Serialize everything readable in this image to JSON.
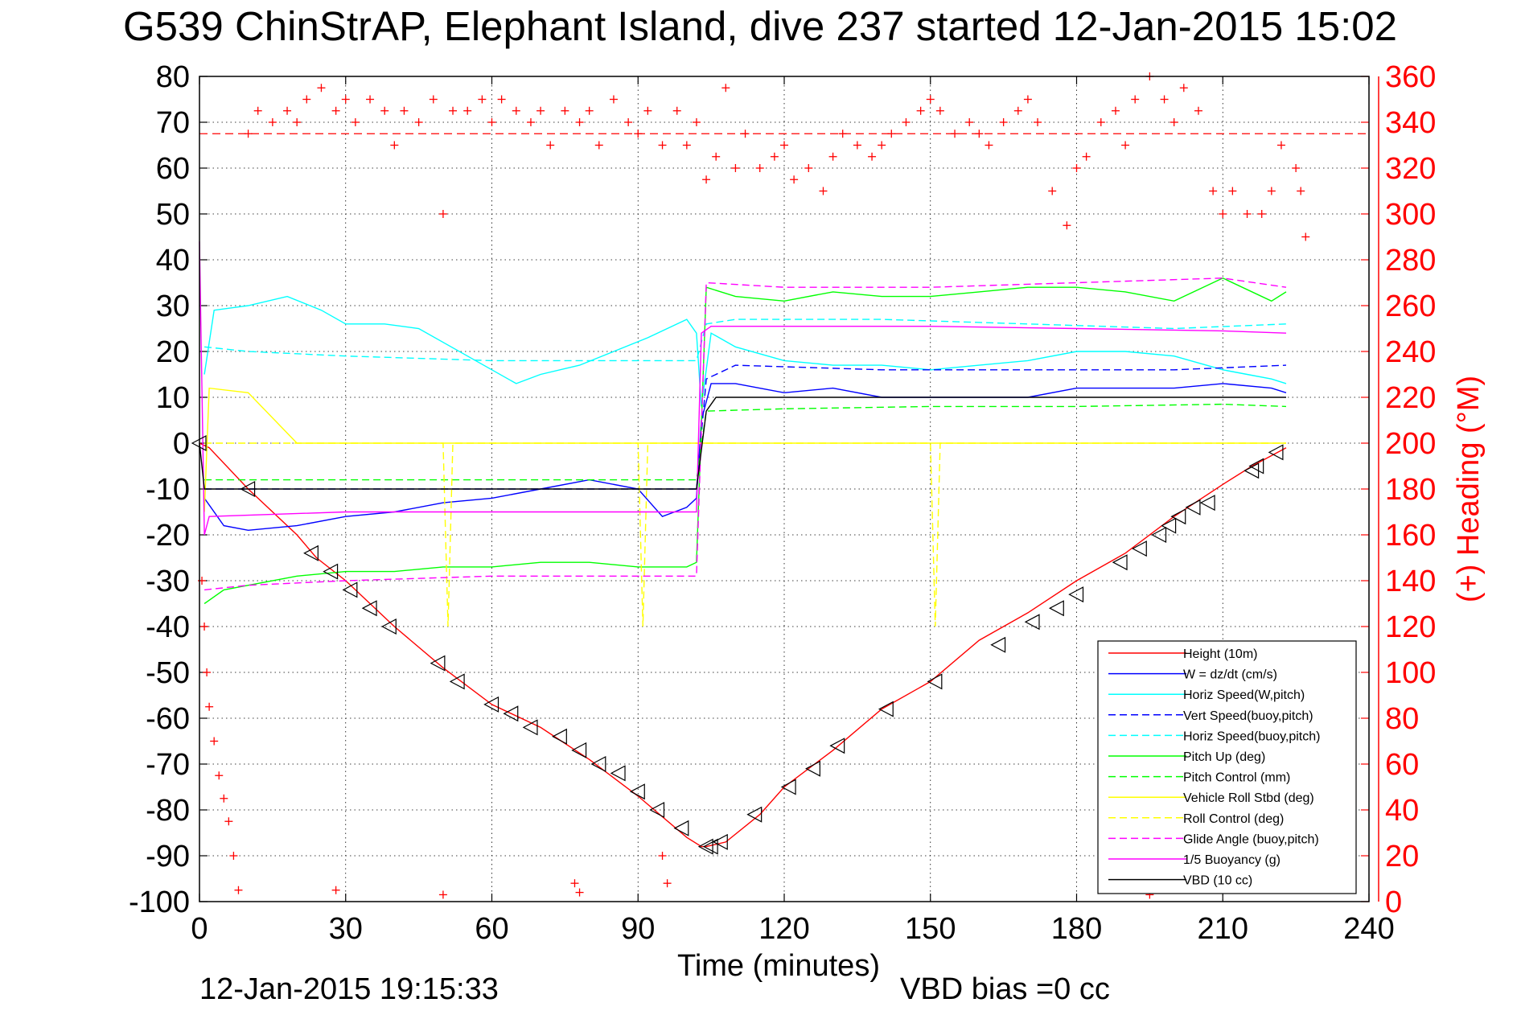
{
  "chart_data": {
    "type": "line",
    "title": "G539 ChinStrAP, Elephant Island, dive 237 started 12-Jan-2015 15:02",
    "xlabel": "Time (minutes)",
    "ylabel": "",
    "ylabel_right": "(+) Heading (°M)",
    "xlim": [
      0,
      240
    ],
    "ylim": [
      -100,
      80
    ],
    "ylim_right": [
      0,
      360
    ],
    "x_ticks": [
      "0",
      "30",
      "60",
      "90",
      "120",
      "150",
      "180",
      "210",
      "240"
    ],
    "y_ticks": [
      "80",
      "70",
      "60",
      "50",
      "40",
      "30",
      "20",
      "10",
      "0",
      "-10",
      "-20",
      "-30",
      "-40",
      "-50",
      "-60",
      "-70",
      "-80",
      "-90",
      "-100"
    ],
    "y_right_ticks": [
      "360",
      "340",
      "320",
      "300",
      "280",
      "260",
      "240",
      "220",
      "200",
      "180",
      "160",
      "140",
      "120",
      "100",
      "80",
      "60",
      "40",
      "20",
      "0"
    ],
    "grid": true,
    "legend_position": "bottom-right",
    "footer_left": "12-Jan-2015 19:15:33",
    "footer_right": "VBD bias =0 cc",
    "colors": {
      "red": "#ff0000",
      "blue": "#0000ff",
      "cyan": "#00ffff",
      "green": "#00ff00",
      "yellow": "#ffff00",
      "magenta": "#ff00ff",
      "black": "#000000"
    },
    "series": [
      {
        "name": "Height (10m)",
        "color": "#ff0000",
        "dash": "solid",
        "x": [
          0,
          2,
          10,
          20,
          24,
          30,
          40,
          50,
          60,
          70,
          80,
          90,
          100,
          103,
          104,
          108,
          115,
          120,
          130,
          140,
          150,
          160,
          170,
          180,
          190,
          200,
          210,
          216,
          223
        ],
        "y": [
          0,
          -1,
          -10,
          -20,
          -25,
          -30,
          -40,
          -49,
          -57,
          -62,
          -69,
          -77,
          -86,
          -88,
          -88,
          -87,
          -81,
          -75,
          -67,
          -58,
          -52,
          -43,
          -37,
          -30,
          -24,
          -16,
          -9,
          -5,
          -1
        ]
      },
      {
        "name": "W = dz/dt (cm/s)",
        "color": "#0000ff",
        "dash": "solid",
        "x": [
          1,
          5,
          10,
          20,
          30,
          40,
          50,
          60,
          70,
          80,
          90,
          95,
          100,
          102,
          103,
          105,
          110,
          120,
          130,
          140,
          150,
          160,
          170,
          180,
          190,
          200,
          210,
          220,
          223
        ],
        "y": [
          -12,
          -18,
          -19,
          -18,
          -16,
          -15,
          -13,
          -12,
          -10,
          -8,
          -10,
          -16,
          -14,
          -12,
          5,
          13,
          13,
          11,
          12,
          10,
          10,
          10,
          10,
          12,
          12,
          12,
          13,
          12,
          11
        ]
      },
      {
        "name": "Horiz Speed(W,pitch)",
        "color": "#00ffff",
        "dash": "solid",
        "x": [
          1,
          3,
          10,
          18,
          25,
          30,
          38,
          45,
          55,
          65,
          70,
          78,
          85,
          92,
          100,
          102,
          103,
          105,
          110,
          120,
          130,
          140,
          150,
          160,
          170,
          180,
          190,
          200,
          210,
          215,
          220,
          223
        ],
        "y": [
          15,
          29,
          30,
          32,
          29,
          26,
          26,
          25,
          19,
          13,
          15,
          17,
          20,
          23,
          27,
          24,
          8,
          24,
          21,
          18,
          17,
          17,
          16,
          17,
          18,
          20,
          20,
          19,
          16,
          15,
          14,
          13
        ]
      },
      {
        "name": "Vert Speed(buoy,pitch)",
        "color": "#0000ff",
        "dash": "dashed",
        "x": [
          1,
          10,
          30,
          60,
          90,
          102,
          104,
          110,
          140,
          170,
          200,
          223
        ],
        "y": [
          -10,
          -10,
          -10,
          -10,
          -10,
          -10,
          14,
          17,
          16,
          16,
          16,
          17
        ]
      },
      {
        "name": "Horiz Speed(buoy,pitch)",
        "color": "#00ffff",
        "dash": "dashed",
        "x": [
          1,
          10,
          30,
          60,
          90,
          102,
          104,
          110,
          140,
          170,
          200,
          223
        ],
        "y": [
          21,
          20,
          19,
          18,
          18,
          18,
          26,
          27,
          27,
          26,
          25,
          26
        ]
      },
      {
        "name": "Pitch Up (deg)",
        "color": "#00ff00",
        "dash": "solid",
        "x": [
          1,
          5,
          20,
          30,
          40,
          50,
          60,
          70,
          80,
          90,
          100,
          102,
          104,
          110,
          120,
          130,
          140,
          150,
          160,
          170,
          180,
          190,
          200,
          210,
          220,
          223
        ],
        "y": [
          -35,
          -32,
          -29,
          -28,
          -28,
          -27,
          -27,
          -26,
          -26,
          -27,
          -27,
          -26,
          34,
          32,
          31,
          33,
          32,
          32,
          33,
          34,
          34,
          33,
          31,
          36,
          31,
          33
        ]
      },
      {
        "name": "Pitch Control (mm)",
        "color": "#00ff00",
        "dash": "dashed",
        "x": [
          1,
          102,
          104,
          120,
          150,
          180,
          210,
          223
        ],
        "y": [
          -8,
          -8,
          7,
          7.5,
          8,
          8,
          8.5,
          8
        ]
      },
      {
        "name": "Vehicle Roll Stbd (deg)",
        "color": "#ffff00",
        "dash": "solid",
        "x": [
          1,
          2,
          10,
          20,
          30,
          40,
          50,
          60,
          70,
          80,
          90,
          100,
          103,
          105,
          110,
          120,
          130,
          140,
          150,
          160,
          170,
          180,
          190,
          200,
          210,
          220,
          223
        ],
        "y": [
          -15,
          12,
          11,
          0,
          0,
          0,
          0,
          0,
          0,
          0,
          0,
          0,
          0,
          0,
          0,
          0,
          0,
          0,
          0,
          0,
          0,
          0,
          0,
          0,
          0,
          0,
          0
        ]
      },
      {
        "name": "Roll Control (deg)",
        "color": "#ffff00",
        "dash": "dashed",
        "x": [
          1,
          50,
          51,
          52,
          90,
          91,
          92,
          150,
          151,
          152,
          223
        ],
        "y": [
          0,
          0,
          -40,
          0,
          0,
          -40,
          0,
          0,
          -40,
          0,
          0
        ]
      },
      {
        "name": "Glide Angle (buoy,pitch)",
        "color": "#ff00ff",
        "dash": "dashed",
        "x": [
          1,
          10,
          30,
          60,
          90,
          102,
          104,
          120,
          150,
          180,
          210,
          223
        ],
        "y": [
          -32,
          -31,
          -30,
          -29,
          -29,
          -29,
          35,
          34,
          34,
          35,
          36,
          34
        ]
      },
      {
        "name": "1/5 Buoyancy (g)",
        "color": "#ff00ff",
        "dash": "solid",
        "x": [
          0,
          1,
          2,
          30,
          60,
          90,
          102,
          103,
          105,
          120,
          150,
          180,
          210,
          223
        ],
        "y": [
          44,
          -20,
          -16,
          -15,
          -15,
          -15,
          -15,
          24,
          25.5,
          25.5,
          25.5,
          25,
          24.5,
          24
        ]
      },
      {
        "name": "VBD (10 cc)",
        "color": "#000000",
        "dash": "solid",
        "x": [
          0,
          1,
          30,
          60,
          90,
          102,
          104,
          106,
          150,
          180,
          223
        ],
        "y": [
          0,
          -10,
          -10,
          -10,
          -10,
          -10,
          7,
          10,
          10,
          10,
          10
        ]
      }
    ],
    "heading_series": {
      "name": "Heading (°M)",
      "axis": "right",
      "marker": "+",
      "color": "#ff0000",
      "reference_line": 335,
      "x": [
        0.5,
        1,
        1.5,
        2,
        3,
        4,
        5,
        6,
        7,
        8,
        10,
        12,
        15,
        18,
        20,
        22,
        25,
        28,
        30,
        32,
        35,
        38,
        40,
        42,
        45,
        48,
        50,
        52,
        55,
        58,
        60,
        62,
        65,
        68,
        70,
        72,
        75,
        78,
        80,
        82,
        85,
        88,
        90,
        92,
        95,
        98,
        100,
        102,
        104,
        106,
        108,
        110,
        112,
        115,
        118,
        120,
        122,
        125,
        128,
        130,
        132,
        135,
        138,
        140,
        142,
        145,
        148,
        150,
        152,
        155,
        158,
        160,
        162,
        165,
        168,
        170,
        172,
        175,
        178,
        180,
        182,
        185,
        188,
        190,
        192,
        195,
        198,
        200,
        202,
        205,
        208,
        210,
        212,
        215,
        218,
        220,
        222,
        225,
        226,
        227
      ],
      "y": [
        140,
        120,
        100,
        85,
        70,
        55,
        45,
        35,
        20,
        5,
        335,
        345,
        340,
        345,
        340,
        350,
        355,
        345,
        350,
        340,
        350,
        345,
        330,
        345,
        340,
        350,
        300,
        345,
        345,
        350,
        340,
        350,
        345,
        340,
        345,
        330,
        345,
        340,
        345,
        330,
        350,
        340,
        335,
        345,
        330,
        345,
        330,
        340,
        315,
        325,
        355,
        320,
        335,
        320,
        325,
        330,
        315,
        320,
        310,
        325,
        335,
        330,
        325,
        330,
        335,
        340,
        345,
        350,
        345,
        335,
        340,
        335,
        330,
        340,
        345,
        350,
        340,
        310,
        295,
        320,
        325,
        340,
        345,
        330,
        350,
        360,
        350,
        340,
        355,
        345,
        310,
        300,
        310,
        300,
        300,
        310,
        330,
        320,
        310,
        290
      ]
    },
    "bottom_heading_points": [
      {
        "x": 28,
        "y": 5
      },
      {
        "x": 50,
        "y": 3
      },
      {
        "x": 77,
        "y": 8
      },
      {
        "x": 78,
        "y": 4
      },
      {
        "x": 95,
        "y": 20
      },
      {
        "x": 96,
        "y": 8
      },
      {
        "x": 195,
        "y": 3
      }
    ],
    "triangle_markers": {
      "x": [
        0,
        10,
        23,
        27,
        31,
        35,
        39,
        49,
        53,
        60,
        64,
        68,
        74,
        78,
        82,
        86,
        90,
        94,
        99,
        104,
        105,
        107,
        114,
        121,
        126,
        131,
        141,
        151,
        164,
        171,
        176,
        180,
        189,
        193,
        197,
        199,
        201,
        204,
        207,
        216,
        217,
        221
      ],
      "y": [
        0,
        -10,
        -24,
        -28,
        -32,
        -36,
        -40,
        -48,
        -52,
        -57,
        -59,
        -62,
        -64,
        -67,
        -70,
        -72,
        -76,
        -80,
        -84,
        -88,
        -88,
        -87,
        -81,
        -75,
        -71,
        -66,
        -58,
        -52,
        -44,
        -39,
        -36,
        -33,
        -26,
        -23,
        -20,
        -18,
        -16,
        -14,
        -13,
        -6,
        -5,
        -2
      ]
    }
  }
}
